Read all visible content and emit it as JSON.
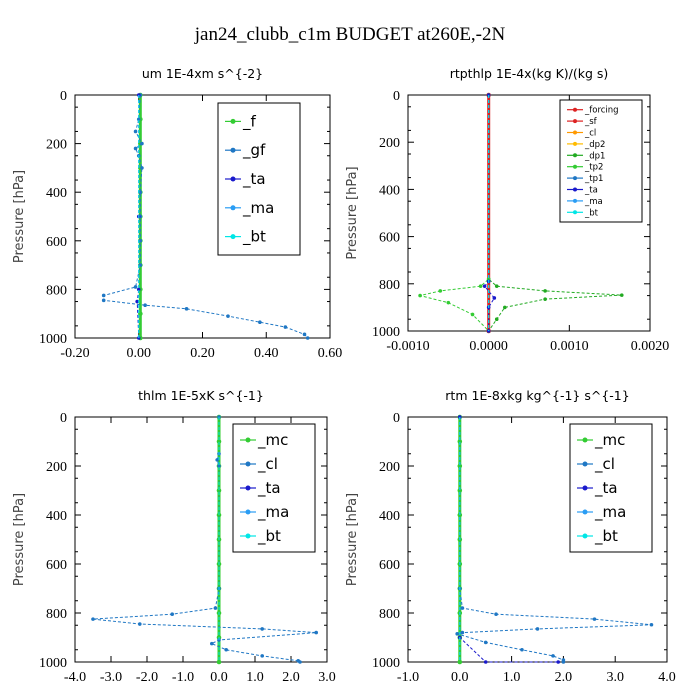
{
  "title": "jan24_clubb_c1m  BUDGET at260E,-2N",
  "chart_data": [
    {
      "type": "line",
      "title": "um   1E-4xm s^{-2}",
      "ylabel": "Pressure [hPa]",
      "xlim": [
        -0.2,
        0.6
      ],
      "ylim": [
        1000,
        0
      ],
      "x_ticks": [
        "-0.20",
        "0.00",
        "0.20",
        "0.40",
        "0.60"
      ],
      "y_ticks": [
        "0",
        "200",
        "400",
        "600",
        "800",
        "1000"
      ],
      "legend": "top-right",
      "series": [
        {
          "name": "_f",
          "color": "#33cc33",
          "points": [
            [
              0.005,
              0
            ],
            [
              0.005,
              100
            ],
            [
              0.005,
              200
            ],
            [
              0.005,
              300
            ],
            [
              0.005,
              400
            ],
            [
              0.005,
              500
            ],
            [
              0.005,
              600
            ],
            [
              0.005,
              700
            ],
            [
              0.005,
              800
            ],
            [
              0.005,
              900
            ],
            [
              0.005,
              1000
            ]
          ]
        },
        {
          "name": "_gf",
          "color": "#1f77c4",
          "points": [
            [
              0.005,
              0
            ],
            [
              0.0,
              100
            ],
            [
              -0.01,
              150
            ],
            [
              0.01,
              200
            ],
            [
              -0.01,
              220
            ],
            [
              0.0,
              250
            ],
            [
              0.01,
              300
            ],
            [
              0.005,
              400
            ],
            [
              0.005,
              500
            ],
            [
              0.005,
              600
            ],
            [
              0.005,
              700
            ],
            [
              -0.01,
              790
            ],
            [
              -0.11,
              825
            ],
            [
              -0.11,
              845
            ],
            [
              0.02,
              865
            ],
            [
              0.15,
              880
            ],
            [
              0.28,
              910
            ],
            [
              0.38,
              935
            ],
            [
              0.46,
              955
            ],
            [
              0.52,
              985
            ],
            [
              0.53,
              1000
            ]
          ]
        },
        {
          "name": "_ta",
          "color": "#1a1acc",
          "points": [
            [
              0.0,
              0
            ],
            [
              0.0,
              500
            ],
            [
              0.0,
              800
            ],
            [
              -0.005,
              850
            ],
            [
              0.0,
              1000
            ]
          ]
        },
        {
          "name": "_ma",
          "color": "#2a9df4",
          "points": [
            [
              0.0,
              0
            ],
            [
              0.0,
              1000
            ]
          ]
        },
        {
          "name": "_bt",
          "color": "#00e6e6",
          "points": [
            [
              0.0,
              0
            ],
            [
              0.0,
              1000
            ]
          ]
        }
      ]
    },
    {
      "type": "line",
      "title": "rtpthlp   1E-4x(kg K)/(kg s)",
      "ylabel": "Pressure [hPa]",
      "xlim": [
        -0.001,
        0.002
      ],
      "ylim": [
        1000,
        0
      ],
      "x_ticks": [
        "-0.0010",
        "0.0000",
        "0.0010",
        "0.0020"
      ],
      "y_ticks": [
        "0",
        "200",
        "400",
        "600",
        "800",
        "1000"
      ],
      "legend": "top-right",
      "series": [
        {
          "name": "_forcing",
          "color": "#dd2222",
          "points": [
            [
              0.0,
              0
            ],
            [
              0.0,
              1000
            ]
          ]
        },
        {
          "name": "_sf",
          "color": "#dd2222",
          "points": [
            [
              0.0,
              0
            ],
            [
              0.0,
              1000
            ]
          ]
        },
        {
          "name": "_cl",
          "color": "#ff9900",
          "points": [
            [
              0.0,
              0
            ],
            [
              0.0,
              1000
            ]
          ]
        },
        {
          "name": "_dp2",
          "color": "#ffbb00",
          "points": [
            [
              0.0,
              0
            ],
            [
              0.0,
              1000
            ]
          ]
        },
        {
          "name": "_dp1",
          "color": "#22aa22",
          "points": [
            [
              0.0,
              0
            ],
            [
              0.0,
              780
            ],
            [
              0.0001,
              810
            ],
            [
              0.0007,
              830
            ],
            [
              0.00165,
              848
            ],
            [
              0.0007,
              865
            ],
            [
              0.0002,
              900
            ],
            [
              0.0001,
              950
            ],
            [
              0.0,
              1000
            ]
          ]
        },
        {
          "name": "_tp2",
          "color": "#33cc33",
          "points": [
            [
              0.0,
              0
            ],
            [
              0.0,
              780
            ],
            [
              -0.0001,
              810
            ],
            [
              -0.0006,
              830
            ],
            [
              -0.00085,
              850
            ],
            [
              -0.0005,
              880
            ],
            [
              -0.0002,
              930
            ],
            [
              0.0,
              1000
            ]
          ]
        },
        {
          "name": "_tp1",
          "color": "#1f77c4",
          "points": [
            [
              0.0,
              0
            ],
            [
              0.0,
              1000
            ]
          ]
        },
        {
          "name": "_ta",
          "color": "#1a1acc",
          "points": [
            [
              0.0,
              0
            ],
            [
              0.0,
              790
            ],
            [
              -5e-05,
              810
            ],
            [
              7e-05,
              860
            ],
            [
              0.0,
              900
            ],
            [
              0.0,
              1000
            ]
          ]
        },
        {
          "name": "_ma",
          "color": "#2a9df4",
          "points": [
            [
              0.0,
              0
            ],
            [
              0.0,
              1000
            ]
          ]
        },
        {
          "name": "_bt",
          "color": "#00e6e6",
          "points": [
            [
              0.0,
              0
            ],
            [
              0.0,
              1000
            ]
          ]
        }
      ]
    },
    {
      "type": "line",
      "title": "thlm   1E-5xK s^{-1}",
      "ylabel": "Pressure [hPa]",
      "xlim": [
        -4.0,
        3.0
      ],
      "ylim": [
        1000,
        0
      ],
      "x_ticks": [
        "-4.0",
        "-3.0",
        "-2.0",
        "-1.0",
        "0.0",
        "1.0",
        "2.0",
        "3.0"
      ],
      "y_ticks": [
        "0",
        "200",
        "400",
        "600",
        "800",
        "1000"
      ],
      "legend": "top-right",
      "series": [
        {
          "name": "_mc",
          "color": "#33cc33",
          "points": [
            [
              0.0,
              0
            ],
            [
              0.0,
              100
            ],
            [
              0.0,
              200
            ],
            [
              0.0,
              300
            ],
            [
              0.0,
              400
            ],
            [
              0.0,
              500
            ],
            [
              0.0,
              600
            ],
            [
              0.0,
              700
            ],
            [
              0.0,
              800
            ],
            [
              0.0,
              900
            ],
            [
              0.0,
              1000
            ]
          ]
        },
        {
          "name": "_cl",
          "color": "#1f77c4",
          "points": [
            [
              0.0,
              0
            ],
            [
              0.0,
              150
            ],
            [
              -0.05,
              175
            ],
            [
              0.0,
              200
            ],
            [
              0.0,
              700
            ],
            [
              -0.1,
              780
            ],
            [
              -1.3,
              805
            ],
            [
              -3.5,
              825
            ],
            [
              -2.2,
              845
            ],
            [
              1.2,
              865
            ],
            [
              2.7,
              880
            ],
            [
              0.0,
              910
            ],
            [
              -0.2,
              925
            ],
            [
              0.2,
              950
            ],
            [
              1.2,
              975
            ],
            [
              2.2,
              995
            ],
            [
              2.25,
              1000
            ]
          ]
        },
        {
          "name": "_ta",
          "color": "#1a1acc",
          "points": [
            [
              0.0,
              0
            ],
            [
              0.0,
              800
            ],
            [
              0.0,
              1000
            ]
          ]
        },
        {
          "name": "_ma",
          "color": "#2a9df4",
          "points": [
            [
              0.0,
              0
            ],
            [
              0.0,
              1000
            ]
          ]
        },
        {
          "name": "_bt",
          "color": "#00e6e6",
          "points": [
            [
              0.0,
              0
            ],
            [
              0.0,
              1000
            ]
          ]
        }
      ]
    },
    {
      "type": "line",
      "title": "rtm   1E-8xkg kg^{-1} s^{-1}",
      "ylabel": "Pressure [hPa]",
      "xlim": [
        -1.0,
        4.0
      ],
      "ylim": [
        1000,
        0
      ],
      "x_ticks": [
        "-1.0",
        "0.0",
        "1.0",
        "2.0",
        "3.0",
        "4.0"
      ],
      "y_ticks": [
        "0",
        "200",
        "400",
        "600",
        "800",
        "1000"
      ],
      "legend": "top-right",
      "series": [
        {
          "name": "_mc",
          "color": "#33cc33",
          "points": [
            [
              0.0,
              0
            ],
            [
              0.0,
              100
            ],
            [
              0.0,
              200
            ],
            [
              0.0,
              300
            ],
            [
              0.0,
              400
            ],
            [
              0.0,
              500
            ],
            [
              0.0,
              600
            ],
            [
              0.0,
              700
            ],
            [
              0.0,
              800
            ],
            [
              0.0,
              900
            ],
            [
              0.0,
              1000
            ]
          ]
        },
        {
          "name": "_cl",
          "color": "#1f77c4",
          "points": [
            [
              0.0,
              0
            ],
            [
              0.0,
              700
            ],
            [
              0.05,
              780
            ],
            [
              0.7,
              805
            ],
            [
              2.6,
              825
            ],
            [
              3.7,
              848
            ],
            [
              1.5,
              865
            ],
            [
              0.05,
              880
            ],
            [
              -0.05,
              885
            ],
            [
              0.5,
              920
            ],
            [
              1.2,
              950
            ],
            [
              1.8,
              975
            ],
            [
              2.0,
              992
            ],
            [
              2.0,
              1000
            ]
          ]
        },
        {
          "name": "_ta",
          "color": "#1a1acc",
          "points": [
            [
              0.0,
              0
            ],
            [
              0.0,
              900
            ],
            [
              0.5,
              1000
            ],
            [
              1.9,
              1000
            ]
          ]
        },
        {
          "name": "_ma",
          "color": "#2a9df4",
          "points": [
            [
              0.0,
              0
            ],
            [
              0.0,
              1000
            ]
          ]
        },
        {
          "name": "_bt",
          "color": "#00e6e6",
          "points": [
            [
              0.0,
              0
            ],
            [
              0.0,
              1000
            ]
          ]
        }
      ]
    }
  ]
}
